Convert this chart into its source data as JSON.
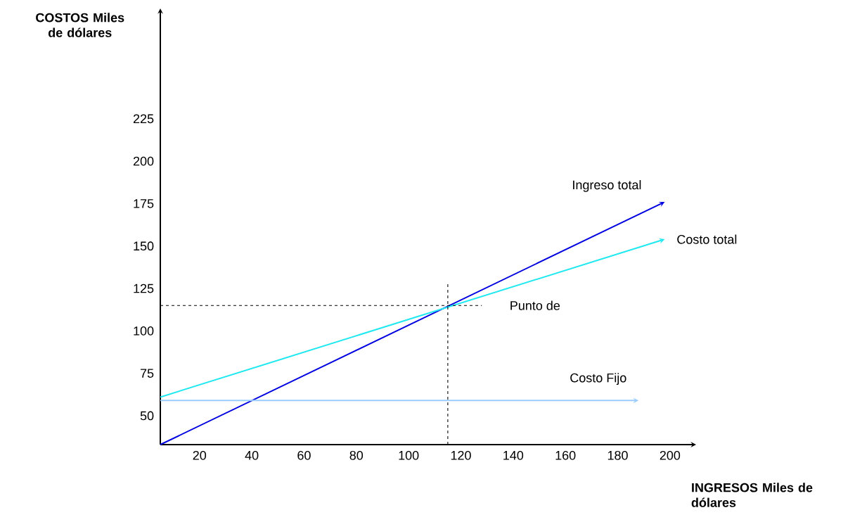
{
  "chart_data": {
    "type": "line",
    "xlabel": "INGRESOS Miles de dólares",
    "ylabel": "COSTOS Miles de dólares",
    "xlim": [
      5,
      210
    ],
    "ylim": [
      33,
      290
    ],
    "xticks": [
      20,
      40,
      60,
      80,
      100,
      120,
      140,
      160,
      180,
      200
    ],
    "yticks": [
      50,
      75,
      100,
      125,
      150,
      175,
      200,
      225
    ],
    "series": [
      {
        "name": "Ingreso total",
        "color": "#0000e0",
        "x": [
          5,
          198
        ],
        "values": [
          33,
          176
        ]
      },
      {
        "name": "Costo total",
        "color": "#1ee8f0",
        "x": [
          5,
          198
        ],
        "values": [
          61,
          154
        ]
      },
      {
        "name": "Costo Fijo",
        "color": "#99ccff",
        "x": [
          5,
          188
        ],
        "values": [
          59,
          59
        ]
      }
    ],
    "ref_lines": [
      {
        "axis": "x",
        "value": 115,
        "label": null,
        "color": "#000000",
        "line_style": "dashed"
      },
      {
        "axis": "y",
        "value": 115,
        "label": "Punto de",
        "color": "#000000",
        "line_style": "dashed"
      }
    ],
    "legend": false,
    "grid": false,
    "line_style": "solid"
  }
}
